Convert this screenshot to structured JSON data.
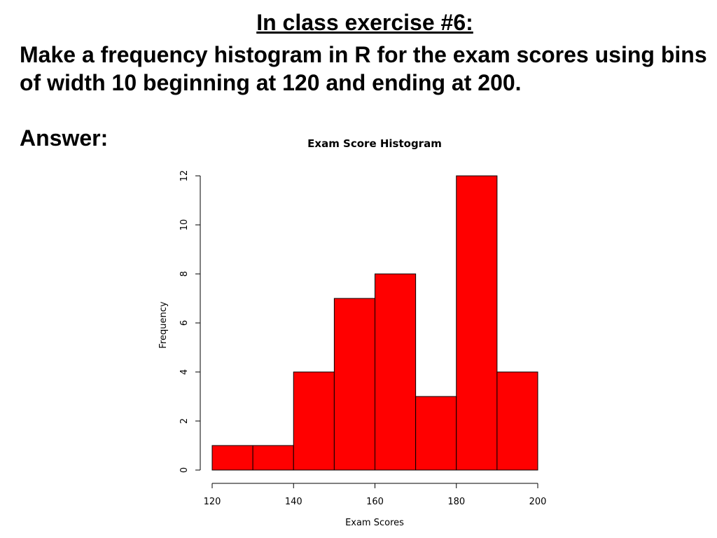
{
  "slide": {
    "heading": "In class exercise #6:",
    "instructions": "Make a frequency histogram in R for the exam scores using bins of width 10 beginning at 120 and ending at 200.",
    "answer_label": "Answer:"
  },
  "colors": {
    "bar_fill": "#ff0000",
    "bar_stroke": "#000000",
    "axis": "#000000"
  },
  "chart_data": {
    "type": "bar",
    "title": "Exam Score Histogram",
    "xlabel": "Exam Scores",
    "ylabel": "Frequency",
    "bins": [
      {
        "start": 120,
        "end": 130,
        "count": 1
      },
      {
        "start": 130,
        "end": 140,
        "count": 1
      },
      {
        "start": 140,
        "end": 150,
        "count": 4
      },
      {
        "start": 150,
        "end": 160,
        "count": 7
      },
      {
        "start": 160,
        "end": 170,
        "count": 8
      },
      {
        "start": 170,
        "end": 180,
        "count": 3
      },
      {
        "start": 180,
        "end": 190,
        "count": 12
      },
      {
        "start": 190,
        "end": 200,
        "count": 4
      }
    ],
    "xlim": [
      120,
      200
    ],
    "ylim": [
      0,
      12
    ],
    "x_ticks": [
      120,
      140,
      160,
      180,
      200
    ],
    "y_ticks": [
      0,
      2,
      4,
      6,
      8,
      10,
      12
    ],
    "grid": false,
    "legend": "none"
  }
}
